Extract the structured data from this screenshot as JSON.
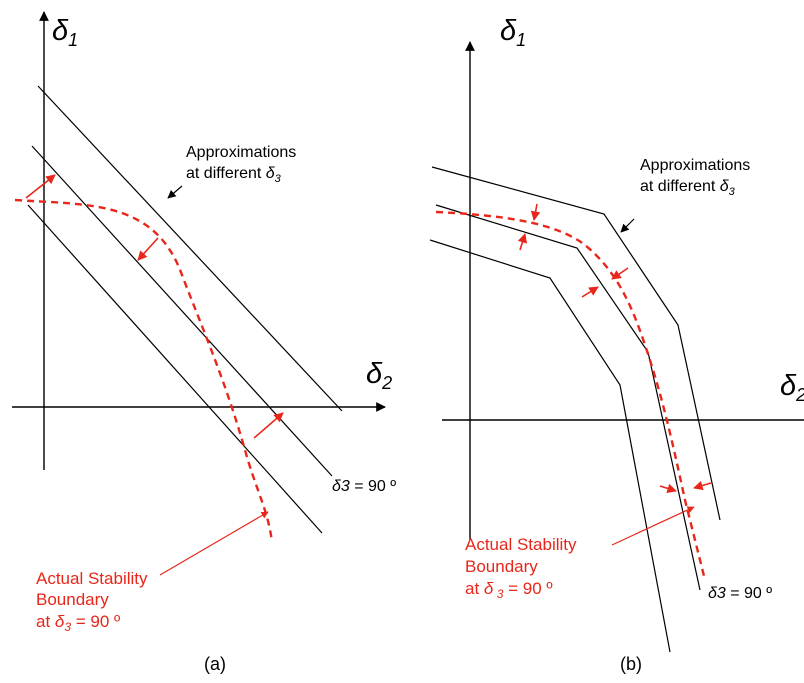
{
  "panel_a": {
    "y_axis_symbol": "δ",
    "y_axis_sub": "1",
    "x_axis_symbol": "δ",
    "x_axis_sub": "2",
    "approx_line1": "Approximations",
    "approx_line2_prefix": "at different ",
    "approx_line2_symbol": "δ",
    "approx_line2_sub": "3",
    "angle_symbol": "δ3",
    "angle_value": " = 90 º",
    "actual_line1": "Actual Stability",
    "actual_line2": "Boundary",
    "actual_line3_prefix": "at ",
    "actual_line3_symbol": "δ",
    "actual_line3_sub": "3",
    "actual_line3_suffix": " = 90 º",
    "caption": "(a)"
  },
  "panel_b": {
    "y_axis_symbol": "δ",
    "y_axis_sub": "1",
    "x_axis_symbol": "δ",
    "x_axis_sub": "2",
    "approx_line1": "Approximations",
    "approx_line2_prefix": "at different ",
    "approx_line2_symbol": "δ",
    "approx_line2_sub": "3",
    "angle_symbol": "δ3",
    "angle_value": " = 90 º",
    "actual_line1": "Actual Stability",
    "actual_line2": "Boundary",
    "actual_line3_prefix": "at ",
    "actual_line3_symbol": "δ",
    "actual_line3_sub": " 3",
    "actual_line3_suffix": " = 90 º",
    "caption": "(b)"
  },
  "colors": {
    "lines": "#000000",
    "boundary": "#e8261a",
    "boundary_text": "#e8261a"
  }
}
